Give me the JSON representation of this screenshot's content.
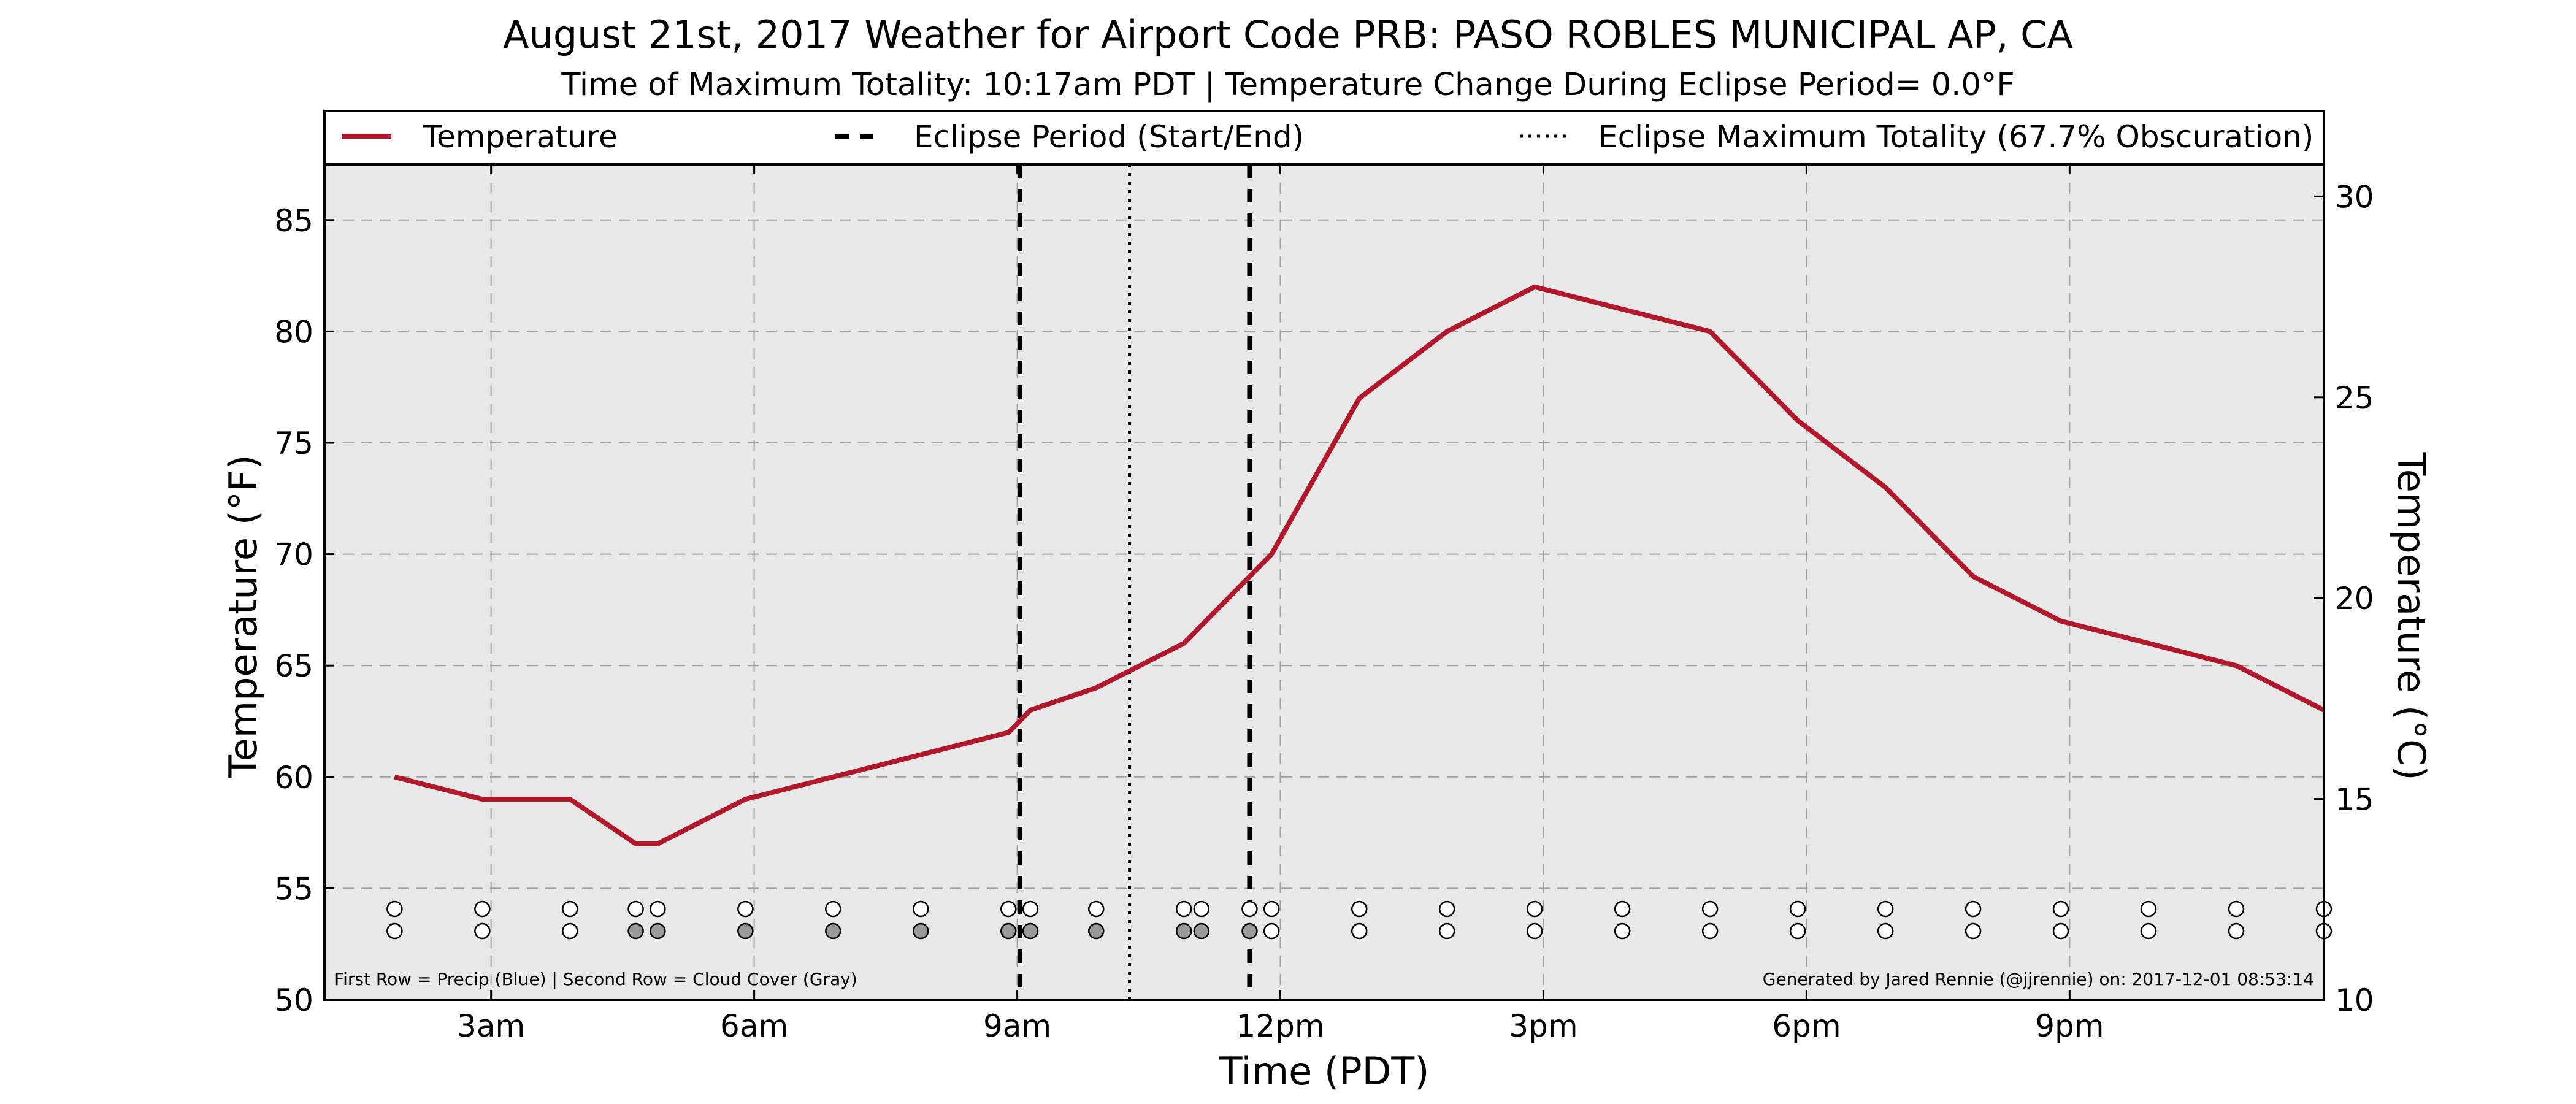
{
  "header": {
    "title": "August 21st, 2017 Weather for Airport Code PRB: PASO ROBLES MUNICIPAL AP, CA",
    "subtitle": "Time of Maximum Totality: 10:17am PDT | Temperature Change During Eclipse Period= 0.0°F"
  },
  "colors": {
    "temperature": "#b2182b",
    "plot_background": "#e8e8e8",
    "cloud_fill": "#999999",
    "empty_fill": "#ffffff"
  },
  "legend": {
    "temperature": "Temperature",
    "eclipse_period": "Eclipse Period (Start/End)",
    "eclipse_max": "Eclipse Maximum Totality (67.7% Obscuration)"
  },
  "footnotes": {
    "left": "First Row = Precip (Blue) | Second Row = Cloud Cover (Gray)",
    "right": "Generated by Jared Rennie (@jjrennie) on: 2017-12-01 08:53:14"
  },
  "chart_data": {
    "type": "line",
    "xlabel": "Time (PDT)",
    "ylabel": "Temperature (°F)",
    "y2label": "Temperature (°C)",
    "xlim": [
      1.1,
      23.9
    ],
    "ylim": [
      50,
      87.5
    ],
    "y2lim": [
      10,
      30.8
    ],
    "x_ticks": [
      {
        "x": 3,
        "label": "3am"
      },
      {
        "x": 6,
        "label": "6am"
      },
      {
        "x": 9,
        "label": "9am"
      },
      {
        "x": 12,
        "label": "12pm"
      },
      {
        "x": 15,
        "label": "3pm"
      },
      {
        "x": 18,
        "label": "6pm"
      },
      {
        "x": 21,
        "label": "9pm"
      }
    ],
    "y_ticks": [
      50,
      55,
      60,
      65,
      70,
      75,
      80,
      85
    ],
    "y2_ticks": [
      10,
      15,
      20,
      25,
      30
    ],
    "grid": true,
    "legend_position": "top",
    "series": [
      {
        "name": "Temperature",
        "x": [
          1.9,
          2.9,
          3.9,
          4.65,
          4.9,
          5.9,
          6.9,
          7.9,
          8.9,
          9.15,
          9.9,
          10.9,
          11.65,
          11.9,
          12.9,
          13.9,
          14.9,
          15.9,
          16.9,
          17.9,
          18.9,
          19.9,
          20.9,
          21.9,
          22.9,
          23.9
        ],
        "y": [
          60,
          59,
          59,
          57,
          57,
          59,
          60,
          61,
          62,
          63,
          64,
          66,
          69,
          70,
          77,
          80,
          82,
          81,
          80,
          76,
          73,
          69,
          67,
          66,
          65,
          63
        ]
      }
    ],
    "eclipse_start": 9.03,
    "eclipse_end": 11.65,
    "eclipse_max": 10.28,
    "observations": {
      "x": [
        1.9,
        2.9,
        3.9,
        4.65,
        4.9,
        5.9,
        6.9,
        7.9,
        8.9,
        9.15,
        9.9,
        10.9,
        11.1,
        11.65,
        11.9,
        12.9,
        13.9,
        14.9,
        15.9,
        16.9,
        17.9,
        18.9,
        19.9,
        20.9,
        21.9,
        22.9,
        23.9
      ],
      "precip": [
        false,
        false,
        false,
        false,
        false,
        false,
        false,
        false,
        false,
        false,
        false,
        false,
        false,
        false,
        false,
        false,
        false,
        false,
        false,
        false,
        false,
        false,
        false,
        false,
        false,
        false,
        false
      ],
      "cloud": [
        false,
        false,
        false,
        true,
        true,
        true,
        true,
        true,
        true,
        true,
        true,
        true,
        true,
        true,
        false,
        false,
        false,
        false,
        false,
        false,
        false,
        false,
        false,
        false,
        false,
        false,
        false
      ]
    }
  }
}
